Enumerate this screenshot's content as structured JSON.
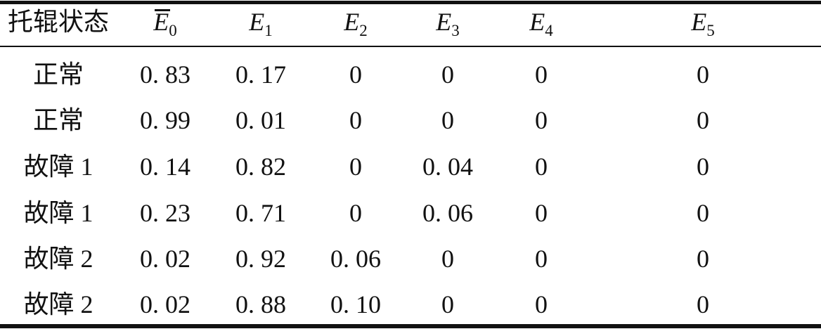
{
  "table": {
    "header": {
      "state_col": "托辊状态",
      "cols": [
        {
          "letter": "E",
          "sub": "0",
          "bar": true
        },
        {
          "letter": "E",
          "sub": "1",
          "bar": false
        },
        {
          "letter": "E",
          "sub": "2",
          "bar": false
        },
        {
          "letter": "E",
          "sub": "3",
          "bar": false
        },
        {
          "letter": "E",
          "sub": "4",
          "bar": false
        },
        {
          "letter": "E",
          "sub": "5",
          "bar": false
        }
      ]
    },
    "rows": [
      {
        "state": "正常",
        "values": [
          "0. 83",
          "0. 17",
          "0",
          "0",
          "0",
          "0"
        ]
      },
      {
        "state": "正常",
        "values": [
          "0. 99",
          "0. 01",
          "0",
          "0",
          "0",
          "0"
        ]
      },
      {
        "state": "故障 1",
        "values": [
          "0. 14",
          "0. 82",
          "0",
          "0. 04",
          "0",
          "0"
        ]
      },
      {
        "state": "故障 1",
        "values": [
          "0. 23",
          "0. 71",
          "0",
          "0. 06",
          "0",
          "0"
        ]
      },
      {
        "state": "故障 2",
        "values": [
          "0. 02",
          "0. 92",
          "0. 06",
          "0",
          "0",
          "0"
        ]
      },
      {
        "state": "故障 2",
        "values": [
          "0. 02",
          "0. 88",
          "0. 10",
          "0",
          "0",
          "0"
        ]
      }
    ],
    "colors": {
      "text": "#111111",
      "background": "#ffffff",
      "rule": "#111111"
    }
  }
}
